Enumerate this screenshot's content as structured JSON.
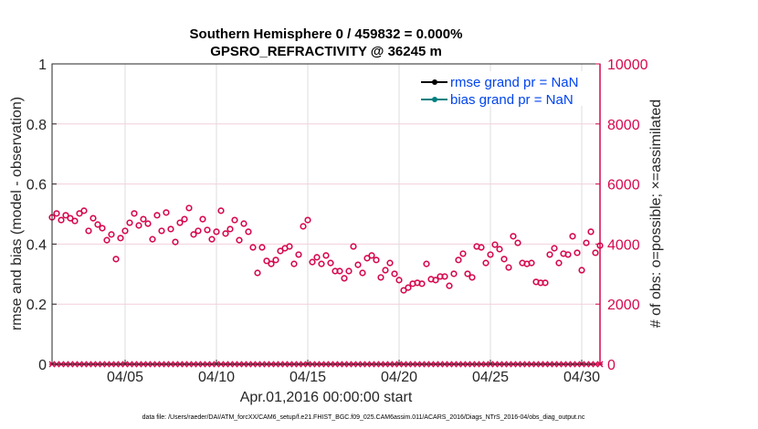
{
  "chart_data": {
    "type": "scatter",
    "title": [
      "Southern Hemisphere 0 / 459832 = 0.000%",
      "GPSRO_REFRACTIVITY @ 36245 m"
    ],
    "xlabel": "Apr.01,2016 00:00:00 start",
    "ylabel": "rmse and bias (model - observation)",
    "ylabel_right": "# of obs: o=possible; ×=assimilated",
    "xlim_days": [
      0,
      30
    ],
    "ylim": [
      0,
      1
    ],
    "ylim_right": [
      0,
      10000
    ],
    "x_ticks": [
      {
        "day": 4,
        "label": "04/05"
      },
      {
        "day": 9,
        "label": "04/10"
      },
      {
        "day": 14,
        "label": "04/15"
      },
      {
        "day": 19,
        "label": "04/20"
      },
      {
        "day": 24,
        "label": "04/25"
      },
      {
        "day": 29,
        "label": "04/30"
      }
    ],
    "y_ticks": [
      "0",
      "0.2",
      "0.4",
      "0.6",
      "0.8",
      "1"
    ],
    "y_ticks_right": [
      "0",
      "2000",
      "4000",
      "6000",
      "8000",
      "10000"
    ],
    "interval_days": 0.25,
    "legend": {
      "placement": "top-right",
      "entries": [
        {
          "label": "rmse grand pr = NaN",
          "color": "#000000"
        },
        {
          "label": "bias grand pr = NaN",
          "color": "#008080"
        }
      ]
    },
    "series": [
      {
        "name": "possible",
        "marker": "o",
        "axis": "right",
        "values": [
          4890,
          5020,
          4800,
          4960,
          4860,
          4770,
          5020,
          5110,
          4440,
          4860,
          4650,
          4530,
          4130,
          4320,
          3500,
          4200,
          4440,
          4710,
          5020,
          4620,
          4830,
          4680,
          4160,
          4960,
          4440,
          5050,
          4500,
          4070,
          4710,
          4830,
          5200,
          4320,
          4440,
          4830,
          4470,
          4160,
          4410,
          5110,
          4350,
          4500,
          4800,
          4130,
          4680,
          4410,
          3890,
          3040,
          3890,
          3440,
          3340,
          3470,
          3770,
          3860,
          3920,
          3340,
          3650,
          4590,
          4800,
          3400,
          3560,
          3340,
          3620,
          3370,
          3100,
          3100,
          2860,
          3100,
          3920,
          3310,
          3040,
          3530,
          3620,
          3470,
          2890,
          3130,
          3370,
          3010,
          2800,
          2460,
          2550,
          2680,
          2710,
          2680,
          3340,
          2830,
          2800,
          2920,
          2920,
          2610,
          3010,
          3470,
          3680,
          3010,
          2890,
          3920,
          3890,
          3370,
          3650,
          3980,
          3830,
          3500,
          3220,
          4260,
          4040,
          3370,
          3340,
          3370,
          2740,
          2710,
          2710,
          3650,
          3860,
          3370,
          3680,
          3650,
          4260,
          3710,
          3130,
          4040,
          4410,
          3710,
          3950
        ]
      },
      {
        "name": "assimilated",
        "marker": "x",
        "axis": "right",
        "constant_value": 0
      }
    ],
    "colors": {
      "obs": "#d6084f",
      "grid": "#dddddd",
      "grid_right": "#f2d0dc"
    }
  },
  "footer": "data file: /Users/raeder/DAI/ATM_forcXX/CAM6_setup/f.e21.FHIST_BGC.f09_025.CAM6assim.011/ACARS_2016/Diags_NTrS_2016-04/obs_diag_output.nc"
}
